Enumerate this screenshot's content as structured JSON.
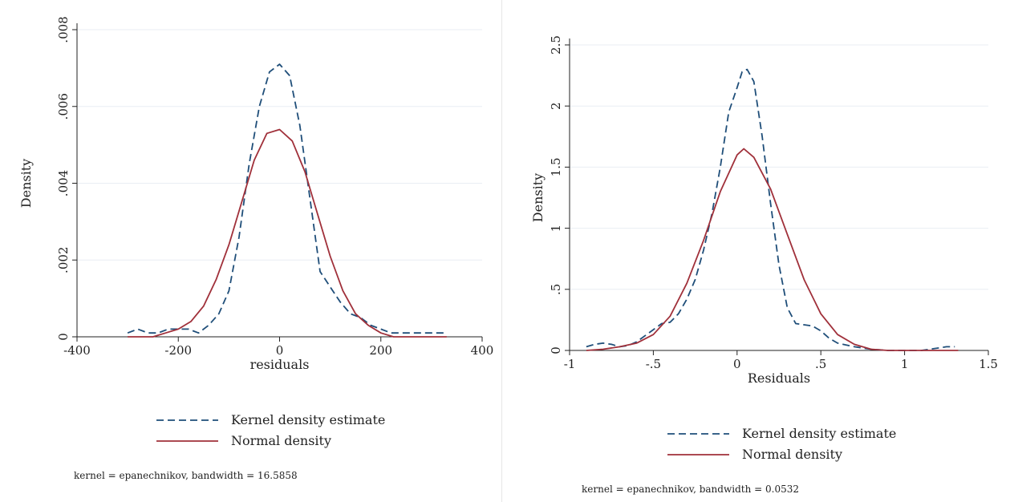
{
  "chart_data": [
    {
      "type": "line",
      "xlabel": "residuals",
      "ylabel": "Density",
      "xlim": [
        -400,
        400
      ],
      "ylim": [
        0,
        0.008
      ],
      "x_ticks": [
        -400,
        -200,
        0,
        200,
        400
      ],
      "x_tick_labels": [
        "-400",
        "-200",
        "0",
        "200",
        "400"
      ],
      "y_ticks": [
        0,
        0.002,
        0.004,
        0.006,
        0.008
      ],
      "y_tick_labels": [
        "0",
        ".002",
        ".004",
        ".006",
        ".008"
      ],
      "grid": true,
      "legend_position": "bottom",
      "note": "kernel = epanechnikov, bandwidth = 16.5858",
      "series": [
        {
          "name": "Kernel density estimate",
          "style": "dashed",
          "color": "#1f4e79",
          "x": [
            -300,
            -280,
            -260,
            -240,
            -220,
            -200,
            -180,
            -160,
            -140,
            -120,
            -100,
            -80,
            -60,
            -40,
            -20,
            0,
            20,
            40,
            60,
            80,
            100,
            120,
            140,
            160,
            180,
            200,
            220,
            240,
            260,
            280,
            300,
            330
          ],
          "y": [
            0.0001,
            0.0002,
            0.0001,
            0.0001,
            0.0002,
            0.0002,
            0.0002,
            0.0001,
            0.0003,
            0.0006,
            0.0012,
            0.0026,
            0.0045,
            0.006,
            0.0069,
            0.0071,
            0.0068,
            0.0055,
            0.0036,
            0.0017,
            0.0013,
            0.0009,
            0.0006,
            0.0005,
            0.0003,
            0.0002,
            0.0001,
            0.0001,
            0.0001,
            0.0001,
            0.0001,
            0.0001
          ]
        },
        {
          "name": "Normal density",
          "style": "solid",
          "color": "#a0303a",
          "x": [
            -300,
            -275,
            -250,
            -225,
            -200,
            -175,
            -150,
            -125,
            -100,
            -75,
            -50,
            -25,
            0,
            25,
            50,
            75,
            100,
            125,
            150,
            175,
            200,
            225,
            250,
            275,
            300,
            330
          ],
          "y": [
            0.0,
            0.0,
            0.0,
            0.0001,
            0.0002,
            0.0004,
            0.0008,
            0.0015,
            0.0024,
            0.0035,
            0.0046,
            0.0053,
            0.0054,
            0.0051,
            0.0043,
            0.0032,
            0.0021,
            0.0012,
            0.0006,
            0.0003,
            0.0001,
            0.0,
            0.0,
            0.0,
            0.0,
            0.0
          ]
        }
      ]
    },
    {
      "type": "line",
      "xlabel": "Residuals",
      "ylabel": "Density",
      "xlim": [
        -1,
        1.5
      ],
      "ylim": [
        0,
        2.5
      ],
      "x_ticks": [
        -1,
        -0.5,
        0,
        0.5,
        1,
        1.5
      ],
      "x_tick_labels": [
        "-1",
        "-.5",
        "0",
        ".5",
        "1",
        "1.5"
      ],
      "y_ticks": [
        0,
        0.5,
        1,
        1.5,
        2,
        2.5
      ],
      "y_tick_labels": [
        "0",
        ".5",
        "1",
        "1.5",
        "2",
        "2.5"
      ],
      "grid": true,
      "legend_position": "bottom",
      "note": "kernel = epanechnikov, bandwidth = 0.0532",
      "series": [
        {
          "name": "Kernel density estimate",
          "style": "dashed",
          "color": "#1f4e79",
          "x": [
            -0.9,
            -0.85,
            -0.8,
            -0.75,
            -0.7,
            -0.65,
            -0.6,
            -0.55,
            -0.5,
            -0.45,
            -0.4,
            -0.35,
            -0.3,
            -0.25,
            -0.2,
            -0.15,
            -0.1,
            -0.05,
            0.0,
            0.03,
            0.06,
            0.1,
            0.15,
            0.2,
            0.25,
            0.3,
            0.35,
            0.4,
            0.45,
            0.5,
            0.55,
            0.6,
            0.7,
            0.8,
            0.9,
            1.0,
            1.1,
            1.2,
            1.25,
            1.3
          ],
          "y": [
            0.03,
            0.05,
            0.06,
            0.05,
            0.03,
            0.04,
            0.07,
            0.12,
            0.17,
            0.22,
            0.23,
            0.3,
            0.42,
            0.58,
            0.82,
            1.12,
            1.5,
            1.95,
            2.15,
            2.28,
            2.3,
            2.2,
            1.75,
            1.2,
            0.7,
            0.35,
            0.22,
            0.21,
            0.2,
            0.16,
            0.1,
            0.06,
            0.03,
            0.01,
            0.0,
            0.0,
            0.0,
            0.02,
            0.03,
            0.03
          ]
        },
        {
          "name": "Normal density",
          "style": "solid",
          "color": "#a0303a",
          "x": [
            -0.9,
            -0.8,
            -0.7,
            -0.6,
            -0.5,
            -0.4,
            -0.3,
            -0.2,
            -0.1,
            0.0,
            0.04,
            0.1,
            0.2,
            0.3,
            0.4,
            0.5,
            0.6,
            0.7,
            0.8,
            0.9,
            1.0,
            1.1,
            1.2,
            1.32
          ],
          "y": [
            0.0,
            0.01,
            0.03,
            0.06,
            0.13,
            0.28,
            0.55,
            0.9,
            1.3,
            1.6,
            1.65,
            1.58,
            1.32,
            0.95,
            0.58,
            0.3,
            0.13,
            0.05,
            0.01,
            0.0,
            0.0,
            0.0,
            0.0,
            0.0
          ]
        }
      ]
    }
  ]
}
